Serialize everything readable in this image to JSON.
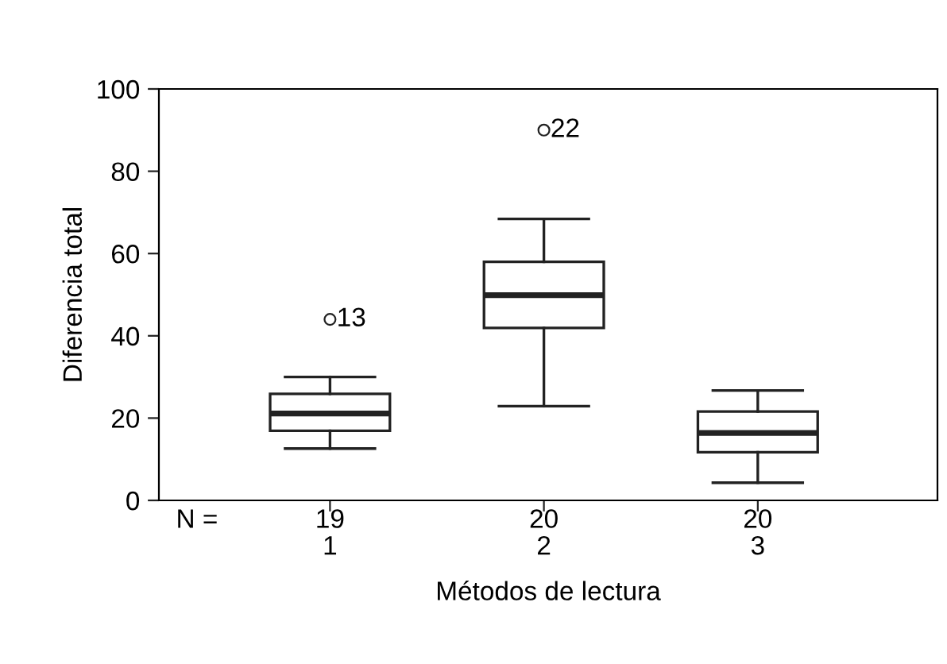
{
  "chart_data": {
    "type": "box",
    "xlabel": "Métodos de lectura",
    "ylabel": "Diferencia total",
    "categories": [
      "1",
      "2",
      "3"
    ],
    "boxes": [
      {
        "low": 12.6,
        "q1": 16.9,
        "median": 21.1,
        "q3": 25.9,
        "high": 30.0,
        "outliers": [
          44
        ]
      },
      {
        "low": 22.9,
        "q1": 41.9,
        "median": 49.9,
        "q3": 58.0,
        "high": 68.4,
        "outliers": [
          90
        ]
      },
      {
        "low": 4.3,
        "q1": 11.7,
        "median": 16.4,
        "q3": 21.6,
        "high": 26.7
      }
    ],
    "color": "#ffffff",
    "ylim": [
      0,
      100
    ],
    "yticks": [
      0,
      20,
      40,
      60,
      80,
      100
    ],
    "grid": false,
    "annotations": [
      "13",
      "22",
      "N =",
      "19",
      "20",
      "20"
    ]
  }
}
